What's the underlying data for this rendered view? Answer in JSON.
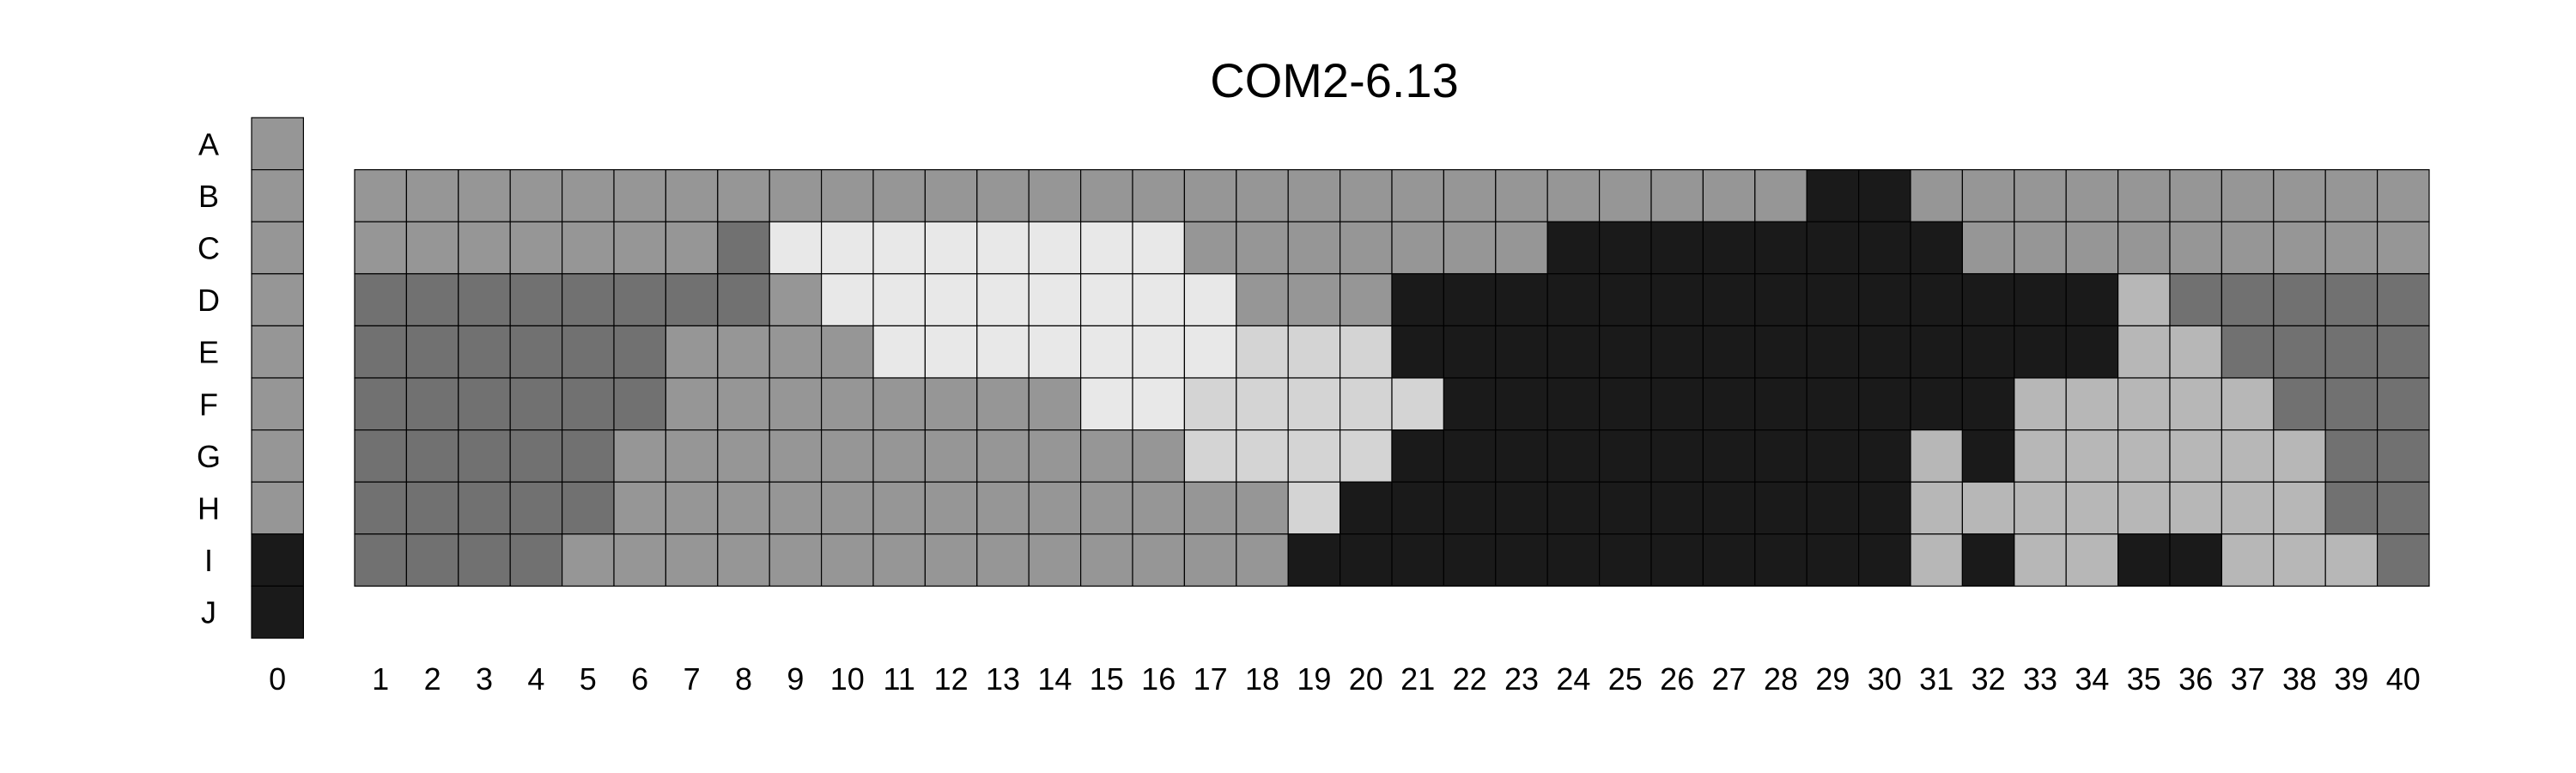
{
  "chart_data": {
    "type": "heatmap",
    "title": "COM2-6.13",
    "palette": {
      "0": "#1a1a1a",
      "1": "#717171",
      "2": "#969696",
      "3": "#b7b7b7",
      "4": "#d4d4d4",
      "5": "#e8e8e8"
    },
    "row_labels": [
      "A",
      "B",
      "C",
      "D",
      "E",
      "F",
      "G",
      "H",
      "I",
      "J"
    ],
    "col_labels": [
      "0",
      "1",
      "2",
      "3",
      "4",
      "5",
      "6",
      "7",
      "8",
      "9",
      "10",
      "11",
      "12",
      "13",
      "14",
      "15",
      "16",
      "17",
      "18",
      "19",
      "20",
      "21",
      "22",
      "23",
      "24",
      "25",
      "26",
      "27",
      "28",
      "29",
      "30",
      "31",
      "32",
      "33",
      "34",
      "35",
      "36",
      "37",
      "38",
      "39",
      "40"
    ],
    "reference_column": {
      "column": "0",
      "rows": [
        "A",
        "B",
        "C",
        "D",
        "E",
        "F",
        "G",
        "H",
        "I",
        "J"
      ],
      "values": [
        2,
        2,
        2,
        2,
        2,
        2,
        2,
        2,
        0,
        0
      ]
    },
    "grid": {
      "rows": [
        "B",
        "C",
        "D",
        "E",
        "F",
        "G",
        "H",
        "I"
      ],
      "columns": [
        "1",
        "2",
        "3",
        "4",
        "5",
        "6",
        "7",
        "8",
        "9",
        "10",
        "11",
        "12",
        "13",
        "14",
        "15",
        "16",
        "17",
        "18",
        "19",
        "20",
        "21",
        "22",
        "23",
        "24",
        "25",
        "26",
        "27",
        "28",
        "29",
        "30",
        "31",
        "32",
        "33",
        "34",
        "35",
        "36",
        "37",
        "38",
        "39",
        "40"
      ],
      "values": [
        [
          2,
          2,
          2,
          2,
          2,
          2,
          2,
          2,
          2,
          2,
          2,
          2,
          2,
          2,
          2,
          2,
          2,
          2,
          2,
          2,
          2,
          2,
          2,
          2,
          2,
          2,
          2,
          2,
          0,
          0,
          2,
          2,
          2,
          2,
          2,
          2,
          2,
          2,
          2,
          2
        ],
        [
          2,
          2,
          2,
          2,
          2,
          2,
          2,
          1,
          5,
          5,
          5,
          5,
          5,
          5,
          5,
          5,
          2,
          2,
          2,
          2,
          2,
          2,
          2,
          0,
          0,
          0,
          0,
          0,
          0,
          0,
          0,
          2,
          2,
          2,
          2,
          2,
          2,
          2,
          2,
          2
        ],
        [
          1,
          1,
          1,
          1,
          1,
          1,
          1,
          1,
          2,
          5,
          5,
          5,
          5,
          5,
          5,
          5,
          5,
          2,
          2,
          2,
          0,
          0,
          0,
          0,
          0,
          0,
          0,
          0,
          0,
          0,
          0,
          0,
          0,
          0,
          3,
          1,
          1,
          1,
          1,
          1
        ],
        [
          1,
          1,
          1,
          1,
          1,
          1,
          2,
          2,
          2,
          2,
          5,
          5,
          5,
          5,
          5,
          5,
          5,
          4,
          4,
          4,
          0,
          0,
          0,
          0,
          0,
          0,
          0,
          0,
          0,
          0,
          0,
          0,
          0,
          0,
          3,
          3,
          1,
          1,
          1,
          1
        ],
        [
          1,
          1,
          1,
          1,
          1,
          1,
          2,
          2,
          2,
          2,
          2,
          2,
          2,
          2,
          5,
          5,
          4,
          4,
          4,
          4,
          4,
          0,
          0,
          0,
          0,
          0,
          0,
          0,
          0,
          0,
          0,
          0,
          3,
          3,
          3,
          3,
          3,
          1,
          1,
          1
        ],
        [
          1,
          1,
          1,
          1,
          1,
          2,
          2,
          2,
          2,
          2,
          2,
          2,
          2,
          2,
          2,
          2,
          4,
          4,
          4,
          4,
          0,
          0,
          0,
          0,
          0,
          0,
          0,
          0,
          0,
          0,
          3,
          0,
          3,
          3,
          3,
          3,
          3,
          3,
          1,
          1
        ],
        [
          1,
          1,
          1,
          1,
          1,
          2,
          2,
          2,
          2,
          2,
          2,
          2,
          2,
          2,
          2,
          2,
          2,
          2,
          4,
          0,
          0,
          0,
          0,
          0,
          0,
          0,
          0,
          0,
          0,
          0,
          3,
          3,
          3,
          3,
          3,
          3,
          3,
          3,
          1,
          1
        ],
        [
          1,
          1,
          1,
          1,
          2,
          2,
          2,
          2,
          2,
          2,
          2,
          2,
          2,
          2,
          2,
          2,
          2,
          2,
          0,
          0,
          0,
          0,
          0,
          0,
          0,
          0,
          0,
          0,
          0,
          0,
          3,
          0,
          3,
          3,
          0,
          0,
          3,
          3,
          3,
          1
        ]
      ]
    }
  }
}
